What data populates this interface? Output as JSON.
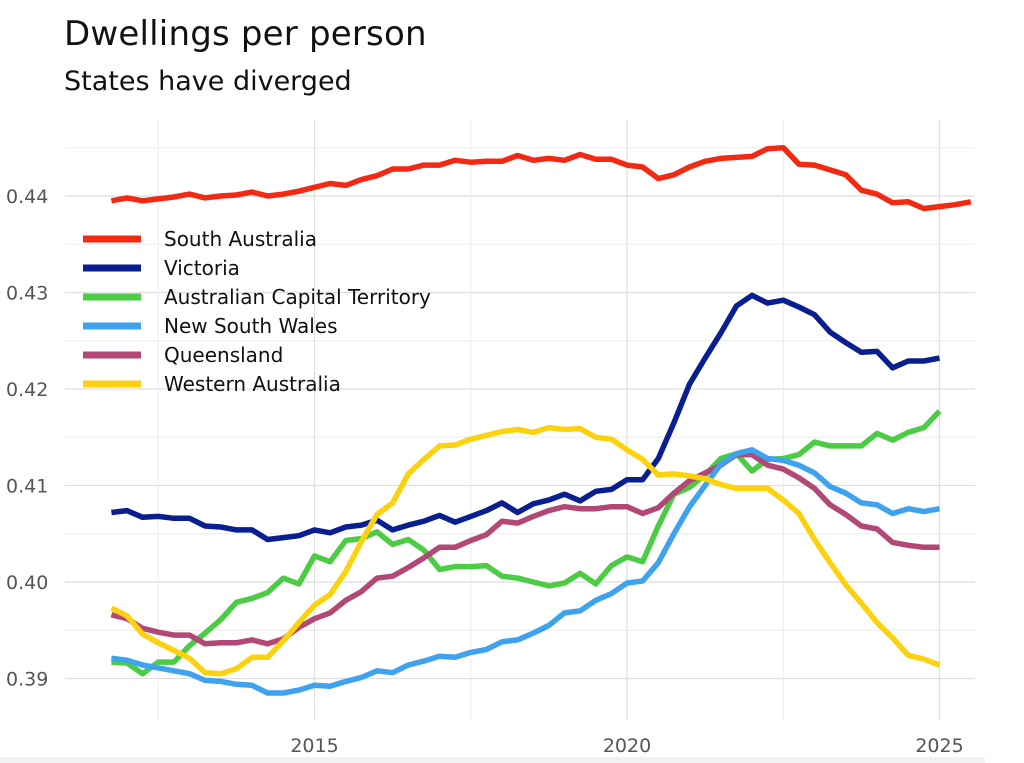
{
  "chart_data": {
    "type": "line",
    "title": "Dwellings per person",
    "subtitle": "States have diverged",
    "xlabel": "",
    "ylabel": "",
    "xlim": [
      2011.3,
      2026.0
    ],
    "ylim": [
      0.3865,
      0.4475
    ],
    "x_ticks": [
      2015,
      2020,
      2025
    ],
    "x_tick_labels": [
      "2015",
      "2020",
      "2025"
    ],
    "x_minor_ticks": [
      2012.5,
      2017.5,
      2022.5
    ],
    "y_ticks": [
      0.39,
      0.4,
      0.41,
      0.42,
      0.43,
      0.44
    ],
    "y_tick_labels": [
      "0.39",
      "0.40",
      "0.41",
      "0.42",
      "0.43",
      "0.44"
    ],
    "y_minor_ticks": [
      0.395,
      0.405,
      0.415,
      0.425,
      0.435,
      0.445
    ],
    "grid": true,
    "legend_position": "top-left",
    "x_start": 2011.75,
    "x_step": 0.25,
    "series": [
      {
        "name": "South Australia",
        "color": "#f22a14",
        "values": [
          0.4395,
          0.4398,
          0.4395,
          0.4397,
          0.4399,
          0.4402,
          0.4398,
          0.44,
          0.4401,
          0.4404,
          0.44,
          0.4402,
          0.4405,
          0.4409,
          0.4413,
          0.4411,
          0.4417,
          0.4421,
          0.4428,
          0.4428,
          0.4432,
          0.4432,
          0.4437,
          0.4435,
          0.4436,
          0.4436,
          0.4442,
          0.4437,
          0.4439,
          0.4437,
          0.4443,
          0.4438,
          0.4438,
          0.4432,
          0.443,
          0.4418,
          0.4422,
          0.443,
          0.4436,
          0.4439,
          0.444,
          0.4441,
          0.4449,
          0.445,
          0.4433,
          0.4432,
          0.4427,
          0.4422,
          0.4406,
          0.4402,
          0.4393,
          0.4394,
          0.4387,
          0.4389,
          0.4391,
          0.4394
        ]
      },
      {
        "name": "Victoria",
        "color": "#0a1f8f",
        "values": [
          0.4072,
          0.4074,
          0.4067,
          0.4068,
          0.4066,
          0.4066,
          0.4058,
          0.4057,
          0.4054,
          0.4054,
          0.4044,
          0.4046,
          0.4048,
          0.4054,
          0.4051,
          0.4057,
          0.4059,
          0.4064,
          0.4054,
          0.4059,
          0.4063,
          0.4069,
          0.4062,
          0.4068,
          0.4074,
          0.4082,
          0.4072,
          0.4081,
          0.4085,
          0.4091,
          0.4084,
          0.4094,
          0.4096,
          0.4106,
          0.4106,
          0.4128,
          0.4165,
          0.4205,
          0.4232,
          0.4258,
          0.4286,
          0.4297,
          0.4289,
          0.4292,
          0.4285,
          0.4277,
          0.4259,
          0.4248,
          0.4238,
          0.4239,
          0.4222,
          0.4229,
          0.4229,
          0.4232
        ]
      },
      {
        "name": "Australian Capital Territory",
        "color": "#4ccc44",
        "values": [
          0.3917,
          0.3916,
          0.3905,
          0.3917,
          0.3917,
          0.3934,
          0.3947,
          0.3961,
          0.3979,
          0.3983,
          0.3989,
          0.4004,
          0.3998,
          0.4027,
          0.4021,
          0.4043,
          0.4045,
          0.4052,
          0.4039,
          0.4044,
          0.4033,
          0.4013,
          0.4016,
          0.4016,
          0.4017,
          0.4006,
          0.4004,
          0.4,
          0.3996,
          0.3999,
          0.4009,
          0.3998,
          0.4017,
          0.4026,
          0.4021,
          0.4058,
          0.4091,
          0.4098,
          0.4111,
          0.4128,
          0.4133,
          0.4115,
          0.4127,
          0.4128,
          0.4132,
          0.4145,
          0.4141,
          0.4141,
          0.4141,
          0.4154,
          0.4147,
          0.4155,
          0.416,
          0.4177
        ]
      },
      {
        "name": "New South Wales",
        "color": "#3fa2ef",
        "values": [
          0.3921,
          0.3919,
          0.3914,
          0.3911,
          0.3908,
          0.3905,
          0.3898,
          0.3897,
          0.3894,
          0.3893,
          0.3885,
          0.3885,
          0.3888,
          0.3893,
          0.3892,
          0.3897,
          0.3901,
          0.3908,
          0.3906,
          0.3914,
          0.3918,
          0.3923,
          0.3922,
          0.3927,
          0.393,
          0.3938,
          0.394,
          0.3947,
          0.3955,
          0.3968,
          0.397,
          0.3981,
          0.3988,
          0.3999,
          0.4001,
          0.402,
          0.405,
          0.4078,
          0.41,
          0.4122,
          0.4133,
          0.4137,
          0.4128,
          0.4126,
          0.4121,
          0.4113,
          0.4099,
          0.4092,
          0.4082,
          0.408,
          0.4071,
          0.4076,
          0.4073,
          0.4076
        ]
      },
      {
        "name": "Queensland",
        "color": "#b24876",
        "values": [
          0.3966,
          0.3962,
          0.3952,
          0.3948,
          0.3945,
          0.3945,
          0.3936,
          0.3937,
          0.3937,
          0.394,
          0.3936,
          0.3941,
          0.3953,
          0.3962,
          0.3968,
          0.3981,
          0.399,
          0.4004,
          0.4006,
          0.4015,
          0.4025,
          0.4036,
          0.4036,
          0.4043,
          0.4049,
          0.4063,
          0.4061,
          0.4068,
          0.4074,
          0.4078,
          0.4076,
          0.4076,
          0.4078,
          0.4078,
          0.4071,
          0.4077,
          0.4092,
          0.4105,
          0.4113,
          0.4121,
          0.4132,
          0.4132,
          0.4121,
          0.4117,
          0.4108,
          0.4097,
          0.408,
          0.407,
          0.4058,
          0.4055,
          0.4041,
          0.4038,
          0.4036,
          0.4036
        ]
      },
      {
        "name": "Western Australia",
        "color": "#fcd20f",
        "values": [
          0.3973,
          0.3965,
          0.3946,
          0.3937,
          0.3929,
          0.3921,
          0.3906,
          0.3905,
          0.391,
          0.3922,
          0.3922,
          0.3939,
          0.3958,
          0.3976,
          0.3987,
          0.4011,
          0.4042,
          0.407,
          0.4082,
          0.4112,
          0.4127,
          0.4141,
          0.4142,
          0.4148,
          0.4152,
          0.4156,
          0.4158,
          0.4155,
          0.416,
          0.4158,
          0.4159,
          0.415,
          0.4148,
          0.4137,
          0.4127,
          0.4111,
          0.4112,
          0.411,
          0.4107,
          0.4101,
          0.4097,
          0.4097,
          0.4097,
          0.4085,
          0.4071,
          0.4044,
          0.402,
          0.3997,
          0.3978,
          0.3958,
          0.3942,
          0.3924,
          0.392,
          0.3914
        ]
      }
    ]
  }
}
